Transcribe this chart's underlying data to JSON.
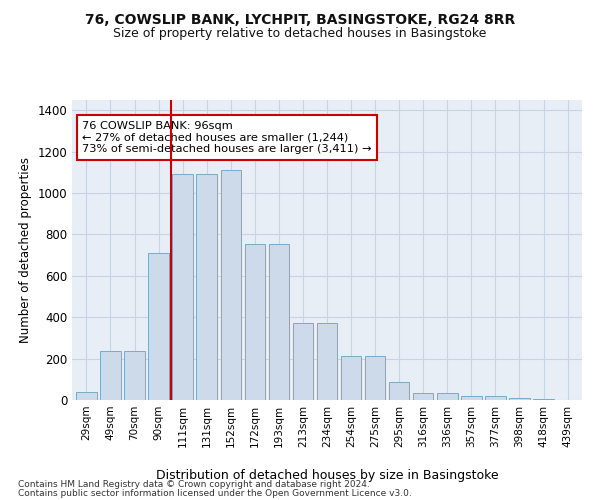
{
  "title": "76, COWSLIP BANK, LYCHPIT, BASINGSTOKE, RG24 8RR",
  "subtitle": "Size of property relative to detached houses in Basingstoke",
  "xlabel": "Distribution of detached houses by size in Basingstoke",
  "ylabel": "Number of detached properties",
  "categories": [
    "29sqm",
    "49sqm",
    "70sqm",
    "90sqm",
    "111sqm",
    "131sqm",
    "152sqm",
    "172sqm",
    "193sqm",
    "213sqm",
    "234sqm",
    "254sqm",
    "275sqm",
    "295sqm",
    "316sqm",
    "336sqm",
    "357sqm",
    "377sqm",
    "398sqm",
    "418sqm",
    "439sqm"
  ],
  "values": [
    40,
    235,
    235,
    710,
    1090,
    1090,
    1110,
    755,
    755,
    370,
    370,
    215,
    215,
    85,
    35,
    35,
    20,
    20,
    10,
    5,
    2
  ],
  "bar_color": "#ccdaea",
  "bar_edge_color": "#7aaac8",
  "grid_color": "#c8d4e4",
  "background_color": "#e8eef6",
  "vline_x": 3.5,
  "vline_color": "#cc0000",
  "annotation_text": "76 COWSLIP BANK: 96sqm\n← 27% of detached houses are smaller (1,244)\n73% of semi-detached houses are larger (3,411) →",
  "annotation_box_facecolor": "#ffffff",
  "annotation_box_edgecolor": "#cc0000",
  "ylim": [
    0,
    1450
  ],
  "yticks": [
    0,
    200,
    400,
    600,
    800,
    1000,
    1200,
    1400
  ],
  "footer_line1": "Contains HM Land Registry data © Crown copyright and database right 2024.",
  "footer_line2": "Contains public sector information licensed under the Open Government Licence v3.0."
}
